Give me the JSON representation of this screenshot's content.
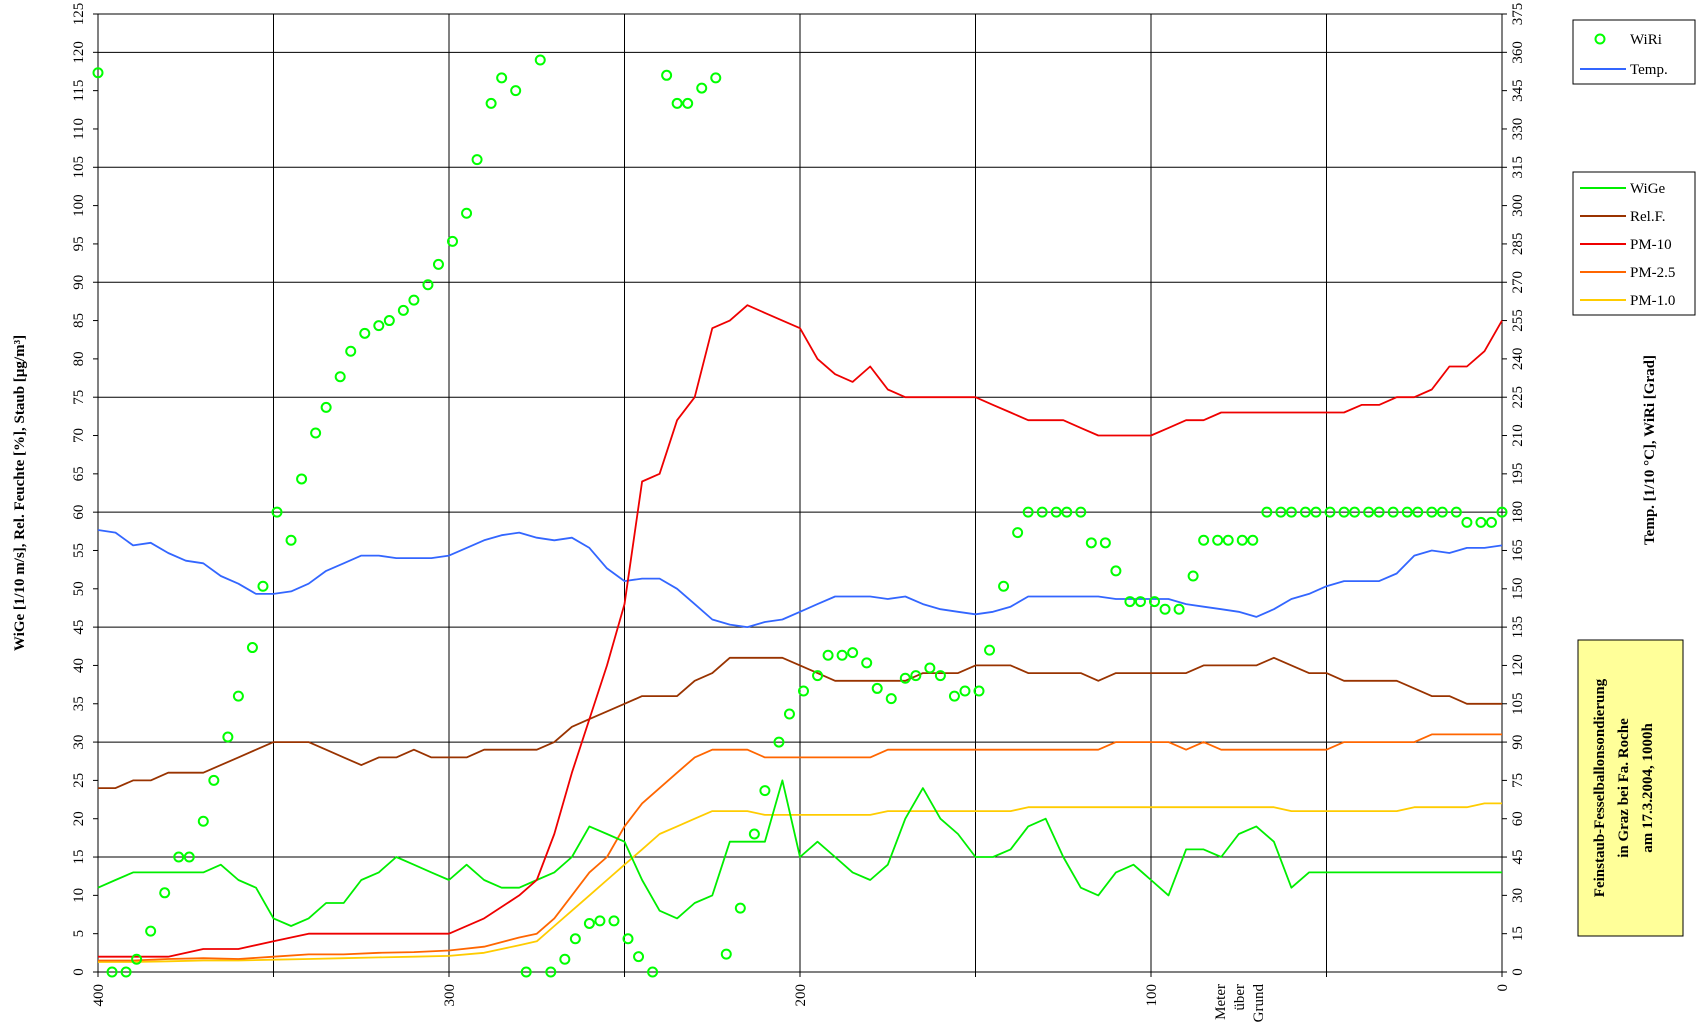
{
  "chart_data": {
    "type": "line",
    "title": "",
    "x_axis": {
      "ticks": [
        "400",
        "300",
        "200",
        "100",
        "0"
      ],
      "label_lines": [
        "Meter",
        "über",
        "Grund"
      ],
      "range": [
        400,
        0
      ]
    },
    "y_left": {
      "label": "WiGe [1/10 m/s], Rel. Feuchte [%], Staub [µg/m³]",
      "range": [
        0,
        125
      ],
      "ticks": [
        "0",
        "5",
        "10",
        "15",
        "20",
        "25",
        "30",
        "35",
        "40",
        "45",
        "50",
        "55",
        "60",
        "65",
        "70",
        "75",
        "80",
        "85",
        "90",
        "95",
        "100",
        "105",
        "110",
        "115",
        "120",
        "125"
      ]
    },
    "y_right": {
      "label": "Temp. [1/10 °C], WiRi [Grad]",
      "range": [
        0,
        375
      ],
      "ticks": [
        "0",
        "15",
        "30",
        "45",
        "60",
        "75",
        "90",
        "105",
        "120",
        "135",
        "150",
        "165",
        "180",
        "195",
        "210",
        "225",
        "240",
        "255",
        "270",
        "285",
        "300",
        "315",
        "330",
        "345",
        "360",
        "375"
      ]
    },
    "grid": true,
    "legend_position": "right",
    "note_lines": [
      "Feinstaub-Fesselballonsondierung",
      "in Graz bei Fa. Roche",
      "am 17.3.2004, 1000h"
    ],
    "legend_top": [
      {
        "name": "WiRi",
        "color": "#00ff00",
        "kind": "marker"
      },
      {
        "name": "Temp.",
        "color": "#3366ff",
        "kind": "line"
      }
    ],
    "legend_bottom": [
      {
        "name": "WiGe",
        "color": "#00ee00",
        "kind": "line"
      },
      {
        "name": "Rel.F.",
        "color": "#993300",
        "kind": "line"
      },
      {
        "name": "PM-10",
        "color": "#ee0000",
        "kind": "line"
      },
      {
        "name": "PM-2.5",
        "color": "#ff6600",
        "kind": "line"
      },
      {
        "name": "PM-1.0",
        "color": "#ffcc00",
        "kind": "line"
      }
    ],
    "series": [
      {
        "name": "Temp.",
        "axis": "right",
        "color": "#3366ff",
        "x": [
          400,
          395,
          390,
          385,
          380,
          375,
          370,
          365,
          360,
          355,
          350,
          345,
          340,
          335,
          330,
          325,
          320,
          315,
          310,
          305,
          300,
          295,
          290,
          285,
          280,
          275,
          270,
          265,
          260,
          255,
          250,
          245,
          240,
          235,
          230,
          225,
          220,
          215,
          210,
          205,
          200,
          195,
          190,
          185,
          180,
          175,
          170,
          165,
          160,
          155,
          150,
          145,
          140,
          135,
          130,
          125,
          120,
          115,
          110,
          105,
          100,
          95,
          90,
          85,
          80,
          75,
          70,
          65,
          60,
          55,
          50,
          45,
          40,
          35,
          30,
          25,
          20,
          15,
          10,
          5,
          0
        ],
        "y": [
          173,
          172,
          167,
          168,
          164,
          161,
          160,
          155,
          152,
          148,
          148,
          149,
          152,
          157,
          160,
          163,
          163,
          162,
          162,
          162,
          163,
          166,
          169,
          171,
          172,
          170,
          169,
          170,
          166,
          158,
          153,
          154,
          154,
          150,
          144,
          138,
          136,
          135,
          137,
          138,
          141,
          144,
          147,
          147,
          147,
          146,
          147,
          144,
          142,
          141,
          140,
          141,
          143,
          147,
          147,
          147,
          147,
          147,
          146,
          146,
          146,
          146,
          144,
          143,
          142,
          141,
          139,
          142,
          146,
          148,
          151,
          153,
          153,
          153,
          156,
          163,
          165,
          164,
          166,
          166,
          167
        ]
      },
      {
        "name": "WiGe",
        "axis": "left",
        "color": "#00ee00",
        "x": [
          400,
          395,
          390,
          385,
          380,
          375,
          370,
          365,
          360,
          355,
          350,
          345,
          340,
          335,
          330,
          325,
          320,
          315,
          310,
          305,
          300,
          295,
          290,
          285,
          280,
          275,
          270,
          265,
          260,
          255,
          250,
          245,
          240,
          235,
          230,
          225,
          220,
          215,
          210,
          205,
          200,
          195,
          190,
          185,
          180,
          175,
          170,
          165,
          160,
          155,
          150,
          145,
          140,
          135,
          130,
          125,
          120,
          115,
          110,
          105,
          100,
          95,
          90,
          85,
          80,
          75,
          70,
          65,
          60,
          55,
          50,
          45,
          40,
          35,
          30,
          25,
          20,
          15,
          10,
          5,
          0
        ],
        "y": [
          11,
          12,
          13,
          13,
          13,
          13,
          13,
          14,
          12,
          11,
          7,
          6,
          7,
          9,
          9,
          12,
          13,
          15,
          14,
          13,
          12,
          14,
          12,
          11,
          11,
          12,
          13,
          15,
          19,
          18,
          17,
          12,
          8,
          7,
          9,
          10,
          17,
          17,
          17,
          25,
          15,
          17,
          15,
          13,
          12,
          14,
          20,
          24,
          20,
          18,
          15,
          15,
          16,
          19,
          20,
          15,
          11,
          10,
          13,
          14,
          12,
          10,
          16,
          16,
          15,
          18,
          19,
          17,
          11,
          13,
          13,
          13,
          13,
          13,
          13,
          13,
          13,
          13,
          13,
          13,
          13
        ]
      },
      {
        "name": "Rel.F.",
        "axis": "left",
        "color": "#993300",
        "x": [
          400,
          395,
          390,
          385,
          380,
          375,
          370,
          365,
          360,
          355,
          350,
          345,
          340,
          335,
          330,
          325,
          320,
          315,
          310,
          305,
          300,
          295,
          290,
          285,
          280,
          275,
          270,
          265,
          260,
          255,
          250,
          245,
          240,
          235,
          230,
          225,
          220,
          215,
          210,
          205,
          200,
          195,
          190,
          185,
          180,
          175,
          170,
          165,
          160,
          155,
          150,
          145,
          140,
          135,
          130,
          125,
          120,
          115,
          110,
          105,
          100,
          95,
          90,
          85,
          80,
          75,
          70,
          65,
          60,
          55,
          50,
          45,
          40,
          35,
          30,
          25,
          20,
          15,
          10,
          5,
          0
        ],
        "y": [
          24,
          24,
          25,
          25,
          26,
          26,
          26,
          27,
          28,
          29,
          30,
          30,
          30,
          29,
          28,
          27,
          28,
          28,
          29,
          28,
          28,
          28,
          29,
          29,
          29,
          29,
          30,
          32,
          33,
          34,
          35,
          36,
          36,
          36,
          38,
          39,
          41,
          41,
          41,
          41,
          40,
          39,
          38,
          38,
          38,
          38,
          38,
          39,
          39,
          39,
          40,
          40,
          40,
          39,
          39,
          39,
          39,
          38,
          39,
          39,
          39,
          39,
          39,
          40,
          40,
          40,
          40,
          41,
          40,
          39,
          39,
          38,
          38,
          38,
          38,
          37,
          36,
          36,
          35,
          35,
          35
        ]
      },
      {
        "name": "PM-10",
        "axis": "left",
        "color": "#ee0000",
        "x": [
          400,
          390,
          380,
          370,
          360,
          350,
          340,
          330,
          320,
          310,
          300,
          290,
          280,
          275,
          270,
          265,
          260,
          255,
          250,
          245,
          240,
          235,
          230,
          225,
          220,
          215,
          210,
          205,
          200,
          195,
          190,
          185,
          180,
          175,
          170,
          165,
          160,
          155,
          150,
          145,
          140,
          135,
          130,
          125,
          120,
          115,
          110,
          105,
          100,
          95,
          90,
          85,
          80,
          75,
          70,
          65,
          60,
          55,
          50,
          45,
          40,
          35,
          30,
          25,
          20,
          15,
          10,
          5,
          0
        ],
        "y": [
          2,
          2,
          2,
          3,
          3,
          4,
          5,
          5,
          5,
          5,
          5,
          7,
          10,
          12,
          18,
          26,
          33,
          40,
          48,
          64,
          65,
          72,
          75,
          84,
          85,
          87,
          86,
          85,
          84,
          80,
          78,
          77,
          79,
          76,
          75,
          75,
          75,
          75,
          75,
          74,
          73,
          72,
          72,
          72,
          71,
          70,
          70,
          70,
          70,
          71,
          72,
          72,
          73,
          73,
          73,
          73,
          73,
          73,
          73,
          73,
          74,
          74,
          75,
          75,
          76,
          79,
          79,
          81,
          85
        ]
      },
      {
        "name": "PM-2.5",
        "axis": "left",
        "color": "#ff6600",
        "x": [
          400,
          390,
          380,
          370,
          360,
          350,
          340,
          330,
          320,
          310,
          300,
          290,
          280,
          275,
          270,
          265,
          260,
          255,
          250,
          245,
          240,
          235,
          230,
          225,
          220,
          215,
          210,
          205,
          200,
          195,
          190,
          185,
          180,
          175,
          170,
          165,
          160,
          155,
          150,
          145,
          140,
          135,
          130,
          125,
          120,
          115,
          110,
          105,
          100,
          95,
          90,
          85,
          80,
          75,
          70,
          65,
          60,
          55,
          50,
          45,
          40,
          35,
          30,
          25,
          20,
          15,
          10,
          5,
          0
        ],
        "y": [
          1.5,
          1.5,
          1.7,
          1.8,
          1.7,
          2,
          2.3,
          2.3,
          2.5,
          2.6,
          2.8,
          3.3,
          4.5,
          5,
          7,
          10,
          13,
          15,
          19,
          22,
          24,
          26,
          28,
          29,
          29,
          29,
          28,
          28,
          28,
          28,
          28,
          28,
          28,
          29,
          29,
          29,
          29,
          29,
          29,
          29,
          29,
          29,
          29,
          29,
          29,
          29,
          30,
          30,
          30,
          30,
          29,
          30,
          29,
          29,
          29,
          29,
          29,
          29,
          29,
          30,
          30,
          30,
          30,
          30,
          31,
          31,
          31,
          31,
          31
        ]
      },
      {
        "name": "PM-1.0",
        "axis": "left",
        "color": "#ffcc00",
        "x": [
          400,
          390,
          380,
          370,
          360,
          350,
          340,
          330,
          320,
          310,
          300,
          290,
          280,
          275,
          270,
          265,
          260,
          255,
          250,
          245,
          240,
          235,
          230,
          225,
          220,
          215,
          210,
          205,
          200,
          195,
          190,
          185,
          180,
          175,
          170,
          165,
          160,
          155,
          150,
          145,
          140,
          135,
          130,
          125,
          120,
          115,
          110,
          105,
          100,
          95,
          90,
          85,
          80,
          75,
          70,
          65,
          60,
          55,
          50,
          45,
          40,
          35,
          30,
          25,
          20,
          15,
          10,
          5,
          0
        ],
        "y": [
          1.3,
          1.3,
          1.4,
          1.5,
          1.5,
          1.6,
          1.7,
          1.8,
          1.9,
          2,
          2.1,
          2.5,
          3.5,
          4,
          6,
          8,
          10,
          12,
          14,
          16,
          18,
          19,
          20,
          21,
          21,
          21,
          20.5,
          20.5,
          20.5,
          20.5,
          20.5,
          20.5,
          20.5,
          21,
          21,
          21,
          21,
          21,
          21,
          21,
          21,
          21.5,
          21.5,
          21.5,
          21.5,
          21.5,
          21.5,
          21.5,
          21.5,
          21.5,
          21.5,
          21.5,
          21.5,
          21.5,
          21.5,
          21.5,
          21,
          21,
          21,
          21,
          21,
          21,
          21,
          21.5,
          21.5,
          21.5,
          21.5,
          22,
          22
        ]
      },
      {
        "name": "WiRi",
        "axis": "right",
        "color": "#00ff00",
        "marker": "circle",
        "x": [
          400,
          396,
          392,
          389,
          385,
          381,
          377,
          374,
          370,
          367,
          363,
          360,
          356,
          353,
          349,
          345,
          342,
          338,
          335,
          331,
          328,
          324,
          320,
          317,
          313,
          310,
          306,
          303,
          299,
          295,
          292,
          288,
          285,
          281,
          278,
          274,
          271,
          267,
          264,
          260,
          257,
          253,
          249,
          246,
          242,
          238,
          235,
          232,
          228,
          224,
          221,
          217,
          213,
          210,
          206,
          203,
          199,
          195,
          192,
          188,
          185,
          181,
          178,
          174,
          170,
          167,
          163,
          160,
          156,
          153,
          149,
          146,
          142,
          138,
          135,
          131,
          127,
          124,
          120,
          117,
          113,
          110,
          106,
          103,
          99,
          96,
          92,
          88,
          85,
          81,
          78,
          74,
          71,
          67,
          63,
          60,
          56,
          53,
          49,
          45,
          42,
          38,
          35,
          31,
          27,
          24,
          20,
          17,
          13,
          10,
          6,
          3,
          0
        ],
        "y": [
          352,
          0,
          0,
          5,
          16,
          31,
          45,
          45,
          59,
          75,
          92,
          108,
          127,
          151,
          180,
          169,
          193,
          211,
          221,
          233,
          243,
          250,
          253,
          255,
          259,
          263,
          269,
          277,
          286,
          297,
          318,
          340,
          350,
          345,
          0,
          357,
          0,
          5,
          13,
          19,
          20,
          20,
          13,
          6,
          0,
          351,
          340,
          340,
          346,
          350,
          7,
          25,
          54,
          71,
          90,
          101,
          110,
          116,
          124,
          124,
          125,
          121,
          111,
          107,
          115,
          116,
          119,
          116,
          108,
          110,
          110,
          126,
          151,
          172,
          180,
          180,
          180,
          180,
          180,
          168,
          168,
          157,
          145,
          145,
          145,
          142,
          142,
          155,
          169,
          169,
          169,
          169,
          169,
          180,
          180,
          180,
          180,
          180,
          180,
          180,
          180,
          180,
          180,
          180,
          180,
          180,
          180,
          180,
          180,
          176,
          176,
          176,
          180
        ]
      }
    ]
  }
}
